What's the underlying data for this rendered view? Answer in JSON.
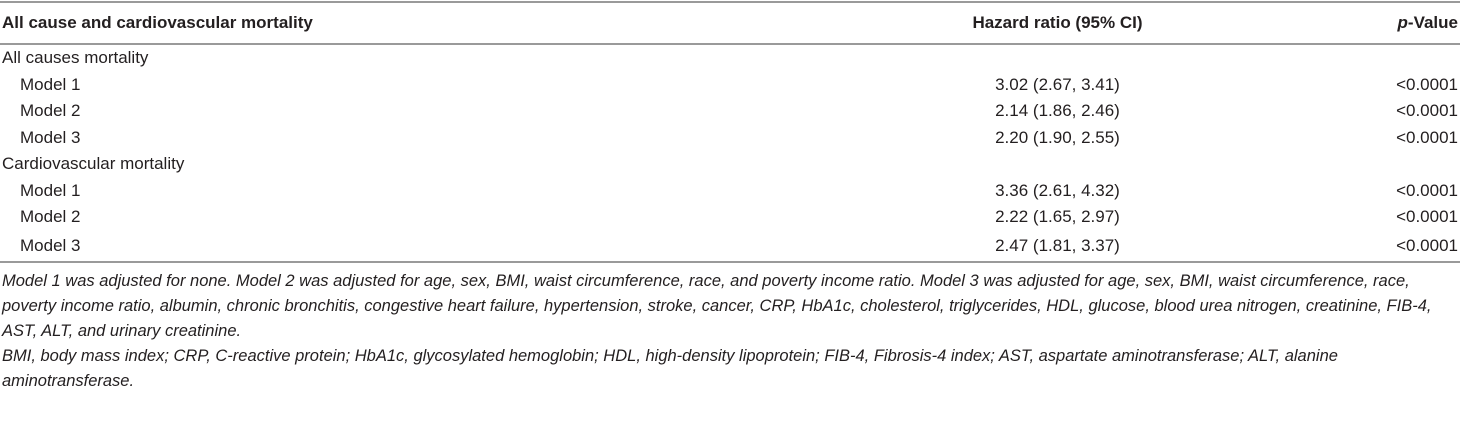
{
  "table": {
    "columns": [
      "All cause and cardiovascular mortality",
      "Hazard ratio (95% CI)",
      "p-Value"
    ],
    "groups": [
      {
        "label": "All causes mortality",
        "rows": [
          [
            "Model 1",
            "3.02 (2.67, 3.41)",
            "<0.0001"
          ],
          [
            "Model 2",
            "2.14 (1.86, 2.46)",
            "<0.0001"
          ],
          [
            "Model 3",
            "2.20 (1.90, 2.55)",
            "<0.0001"
          ]
        ]
      },
      {
        "label": "Cardiovascular mortality",
        "rows": [
          [
            "Model 1",
            "3.36 (2.61, 4.32)",
            "<0.0001"
          ],
          [
            "Model 2",
            "2.22 (1.65, 2.97)",
            "<0.0001"
          ],
          [
            "Model 3",
            "2.47 (1.81, 3.37)",
            "<0.0001"
          ]
        ]
      }
    ]
  },
  "footnotes": [
    "Model 1 was adjusted for none. Model 2 was adjusted for age, sex, BMI, waist circumference, race, and poverty income ratio. Model 3 was adjusted for age, sex, BMI, waist circumference, race, poverty income ratio, albumin, chronic bronchitis, congestive heart failure, hypertension, stroke, cancer, CRP, HbA1c, cholesterol, triglycerides, HDL, glucose, blood urea nitrogen, creatinine, FIB-4, AST, ALT, and urinary creatinine.",
    "BMI, body mass index; CRP, C-reactive protein; HbA1c, glycosylated hemoglobin; HDL, high-density lipoprotein; FIB-4, Fibrosis-4 index; AST, aspartate aminotransferase; ALT, alanine aminotransferase."
  ]
}
